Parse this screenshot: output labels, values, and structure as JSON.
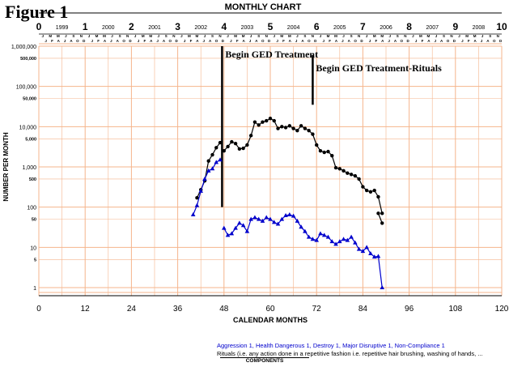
{
  "figure_label": "Figure 1",
  "chart_data": {
    "type": "line",
    "title": "MONTHLY CHART",
    "xlabel": "CALENDAR MONTHS",
    "ylabel": "NUMBER PER MONTH",
    "y_scale": "log",
    "xlim": [
      0,
      120
    ],
    "ylim": [
      1,
      1000000
    ],
    "x_ticks": [
      0,
      12,
      24,
      36,
      48,
      60,
      72,
      84,
      96,
      108,
      120
    ],
    "y_tick_labels": [
      "1",
      "5",
      "10",
      "50",
      "100",
      "500",
      "1,000",
      "5,000",
      "10,000",
      "50,000",
      "100,000",
      "500,000",
      "1,000,000"
    ],
    "y_major_tick_labels": [
      "1",
      "10",
      "100",
      "1,000",
      "10,000",
      "100,000",
      "1,000,000"
    ],
    "top_axis_numbers": [
      "0",
      "1",
      "2",
      "3",
      "4",
      "5",
      "6",
      "7",
      "8",
      "9",
      "10"
    ],
    "years": [
      "1999",
      "2000",
      "2001",
      "2002",
      "2003",
      "2004",
      "2005",
      "2006",
      "2007",
      "2008"
    ],
    "month_letters_top": [
      "J",
      "M",
      "M",
      "J",
      "S",
      "N"
    ],
    "month_letters_bottom": [
      "J",
      "F",
      "A",
      "J",
      "A",
      "O",
      "D"
    ],
    "grid": true,
    "annotations": [
      {
        "text": "Begin GED Treatment",
        "x": 47.5,
        "line_from": 100,
        "line_to": 1000000
      },
      {
        "text": "Begin GED Treatment-Rituals",
        "x": 71,
        "line_from": 35000,
        "line_to": 600000
      }
    ],
    "series": [
      {
        "name": "Rituals",
        "color": "#000000",
        "marker": "circle",
        "segments": [
          {
            "x": [
              41,
              42,
              43,
              44,
              45,
              46,
              47
            ],
            "y": [
              170,
              270,
              450,
              1400,
              2000,
              3000,
              4000
            ]
          },
          {
            "x": [
              48,
              49,
              50,
              51,
              52,
              53,
              54,
              55,
              56,
              57,
              58,
              59,
              60,
              61,
              62,
              63,
              64,
              65,
              66,
              67,
              68,
              69,
              70,
              71,
              72,
              73,
              74,
              75,
              76,
              77,
              78,
              79,
              80,
              81,
              82,
              83,
              84,
              85,
              86,
              87,
              88,
              89
            ],
            "y": [
              2500,
              3200,
              4200,
              3800,
              2800,
              2900,
              3500,
              6000,
              13000,
              11000,
              13000,
              14000,
              16000,
              14000,
              9000,
              10000,
              9500,
              10500,
              9000,
              8000,
              10500,
              9000,
              8000,
              6500,
              3500,
              2500,
              2300,
              2400,
              1900,
              950,
              900,
              800,
              700,
              650,
              600,
              500,
              320,
              260,
              240,
              260,
              180,
              70
            ]
          },
          {
            "x": [
              88,
              89
            ],
            "y": [
              70,
              40
            ]
          }
        ]
      },
      {
        "name": "Aggression 1, Health Dangerous 1, Destroy 1, Major Disruptive 1, Non-Compliance 1",
        "color": "#0000cc",
        "marker": "triangle",
        "segments": [
          {
            "x": [
              40,
              41,
              42,
              43,
              44,
              45,
              46,
              47
            ],
            "y": [
              65,
              110,
              250,
              500,
              800,
              900,
              1300,
              1500
            ]
          },
          {
            "x": [
              48,
              49,
              50,
              51,
              52,
              53,
              54,
              55,
              56,
              57,
              58,
              59,
              60,
              61,
              62,
              63,
              64,
              65,
              66,
              67,
              68,
              69,
              70,
              71,
              72,
              73,
              74,
              75,
              76,
              77,
              78,
              79,
              80,
              81,
              82,
              83,
              84,
              85,
              86,
              87,
              88,
              89
            ],
            "y": [
              30,
              20,
              22,
              30,
              40,
              35,
              25,
              50,
              55,
              50,
              45,
              55,
              50,
              42,
              38,
              50,
              62,
              65,
              60,
              45,
              32,
              25,
              18,
              16,
              15,
              22,
              20,
              18,
              14,
              12,
              14,
              16,
              15,
              18,
              13,
              9,
              8,
              10,
              7,
              5.8,
              6,
              1
            ]
          }
        ]
      }
    ]
  },
  "legend": {
    "line1": "Aggression 1, Health Dangerous 1, Destroy 1, Major Disruptive 1, Non-Compliance 1",
    "line2": "Rituals (i.e. any action done in a repetitive fashion i.e. repetitive hair brushing, washing of hands, ...",
    "components": "COMPONENTS"
  },
  "colors": {
    "grid": "#f5b58c",
    "rituals": "#000000",
    "behaviors": "#0000cc"
  }
}
